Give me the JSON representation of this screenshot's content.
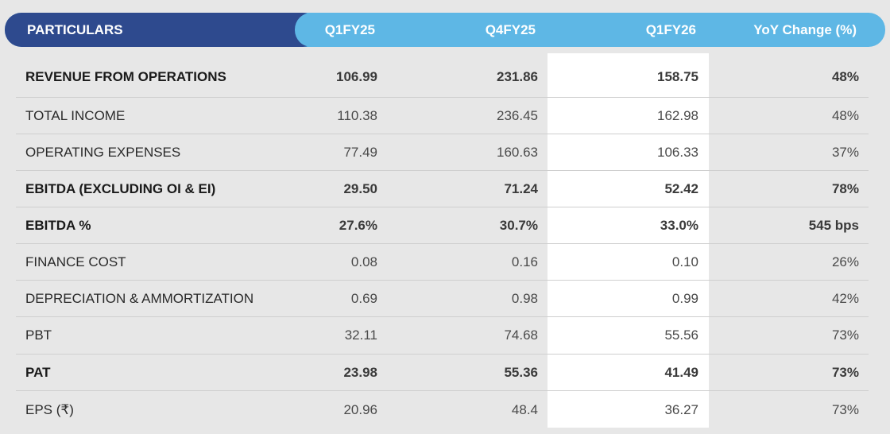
{
  "header": {
    "particulars": "PARTICULARS",
    "q1fy25": "Q1FY25",
    "q4fy25": "Q4FY25",
    "q1fy26": "Q1FY26",
    "yoy": "YoY Change (%)"
  },
  "colors": {
    "header_dark": "#2e4a8e",
    "header_light": "#5eb7e5",
    "background": "#e7e7e7",
    "highlight_column": "#ffffff"
  },
  "rows": [
    {
      "label": "REVENUE FROM OPERATIONS",
      "q1fy25": "106.99",
      "q4fy25": "231.86",
      "q1fy26": "158.75",
      "yoy": "48%",
      "bold": true
    },
    {
      "label": "TOTAL INCOME",
      "q1fy25": "110.38",
      "q4fy25": "236.45",
      "q1fy26": "162.98",
      "yoy": "48%",
      "bold": false
    },
    {
      "label": "OPERATING EXPENSES",
      "q1fy25": "77.49",
      "q4fy25": "160.63",
      "q1fy26": "106.33",
      "yoy": "37%",
      "bold": false
    },
    {
      "label": "EBITDA (EXCLUDING OI & EI)",
      "q1fy25": "29.50",
      "q4fy25": "71.24",
      "q1fy26": "52.42",
      "yoy": "78%",
      "bold": true
    },
    {
      "label": "EBITDA %",
      "q1fy25": "27.6%",
      "q4fy25": "30.7%",
      "q1fy26": "33.0%",
      "yoy": "545 bps",
      "bold": true
    },
    {
      "label": "FINANCE COST",
      "q1fy25": "0.08",
      "q4fy25": "0.16",
      "q1fy26": "0.10",
      "yoy": "26%",
      "bold": false
    },
    {
      "label": "DEPRECIATION & AMMORTIZATION",
      "q1fy25": "0.69",
      "q4fy25": "0.98",
      "q1fy26": "0.99",
      "yoy": "42%",
      "bold": false
    },
    {
      "label": "PBT",
      "q1fy25": "32.11",
      "q4fy25": "74.68",
      "q1fy26": "55.56",
      "yoy": "73%",
      "bold": false
    },
    {
      "label": "PAT",
      "q1fy25": "23.98",
      "q4fy25": "55.36",
      "q1fy26": "41.49",
      "yoy": "73%",
      "bold": true
    },
    {
      "label": "EPS (₹)",
      "q1fy25": "20.96",
      "q4fy25": "48.4",
      "q1fy26": "36.27",
      "yoy": "73%",
      "bold": false
    }
  ]
}
